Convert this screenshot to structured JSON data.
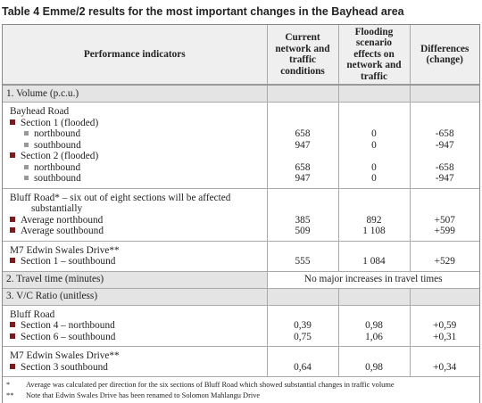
{
  "title": "Table 4 Emme/2 results for the most important changes in the Bayhead area",
  "table": {
    "header": [
      "Performance indicators",
      "Current network and traffic conditions",
      "Flooding scenario effects on network and traffic",
      "Differences (change)"
    ],
    "sections": [
      {
        "title": "1. Volume (p.c.u.)",
        "groups": [
          {
            "rows": [
              {
                "label": "Bayhead Road"
              },
              {
                "label": "Section 1 (flooded)",
                "marker": "square"
              },
              {
                "label": "northbound",
                "marker": "small-square",
                "cells": [
                  "658",
                  "0",
                  "-658"
                ]
              },
              {
                "label": "southbound",
                "marker": "small-square",
                "cells": [
                  "947",
                  "0",
                  "-947"
                ]
              },
              {
                "label": "Section 2 (flooded)",
                "marker": "square"
              },
              {
                "label": "northbound",
                "marker": "small-square",
                "cells": [
                  "658",
                  "0",
                  "-658"
                ]
              },
              {
                "label": "southbound",
                "marker": "small-square",
                "cells": [
                  "947",
                  "0",
                  "-947"
                ]
              }
            ]
          },
          {
            "rows": [
              {
                "label": "Bluff Road* – six out of eight sections will be affected substantially"
              },
              {
                "label": "Average northbound",
                "marker": "square",
                "cells": [
                  "385",
                  "892",
                  "+507"
                ]
              },
              {
                "label": "Average southbound",
                "marker": "square",
                "cells": [
                  "509",
                  "1 108",
                  "+599"
                ]
              }
            ]
          },
          {
            "rows": [
              {
                "label": "M7 Edwin Swales Drive**"
              },
              {
                "label": "Section 1 – southbound",
                "marker": "square",
                "cells": [
                  "555",
                  "1 084",
                  "+529"
                ]
              }
            ]
          }
        ]
      },
      {
        "title": "2. Travel time (minutes)",
        "note": "No major increases in travel times"
      },
      {
        "title": "3. V/C Ratio (unitless)",
        "groups": [
          {
            "rows": [
              {
                "label": "Bluff Road"
              },
              {
                "label": "Section 4 – northbound",
                "marker": "square",
                "cells": [
                  "0,39",
                  "0,98",
                  "+0,59"
                ]
              },
              {
                "label": "Section 6 – southbound",
                "marker": "square",
                "cells": [
                  "0,75",
                  "1,06",
                  "+0,31"
                ]
              }
            ]
          },
          {
            "rows": [
              {
                "label": "M7 Edwin Swales Drive**"
              },
              {
                "label": "Section 3 southbound",
                "marker": "square",
                "cells": [
                  "0,64",
                  "0,98",
                  "+0,34"
                ]
              }
            ]
          }
        ]
      }
    ]
  },
  "footnotes": [
    {
      "mark": "*",
      "text": "Average was calculated per direction for the six sections of Bluff Road which showed substantial changes in traffic volume"
    },
    {
      "mark": "**",
      "text": "Note that Edwin Swales Drive has been renamed to Solomon Mahlangu Drive"
    }
  ]
}
